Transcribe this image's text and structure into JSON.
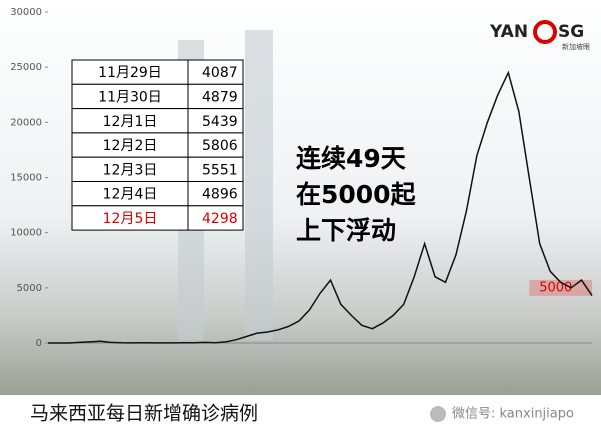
{
  "chart_data": {
    "type": "line",
    "series": [
      {
        "name": null,
        "color": "#111111",
        "values": [
          0,
          0,
          0,
          50,
          100,
          150,
          50,
          20,
          10,
          20,
          10,
          10,
          10,
          15,
          20,
          50,
          20,
          100,
          300,
          600,
          900,
          1000,
          1200,
          1500,
          2000,
          3000,
          4500,
          5700,
          3500,
          2500,
          1600,
          1300,
          1800,
          2500,
          3500,
          6000,
          9000,
          6000,
          5500,
          8000,
          12000,
          17000,
          20000,
          22500,
          24500,
          21000,
          15000,
          9000,
          6500,
          5500,
          5000,
          5700,
          4300
        ]
      }
    ],
    "ylim": [
      0,
      30000
    ],
    "yticks": [
      0,
      5000,
      10000,
      15000,
      20000,
      25000,
      30000
    ],
    "band": {
      "value": 5000,
      "label": "5000",
      "color": "#e05050"
    },
    "annotation": [
      "连续49天",
      "在5000起",
      "上下浮动"
    ],
    "caption": "马来西亚每日新增确诊病例"
  },
  "table": {
    "rows": [
      [
        "11月29日",
        4087
      ],
      [
        "11月30日",
        4879
      ],
      [
        "12月1日",
        5439
      ],
      [
        "12月2日",
        5806
      ],
      [
        "12月3日",
        5551
      ],
      [
        "12月4日",
        4896
      ],
      [
        "12月5日",
        4298
      ]
    ],
    "highlight_row": 6,
    "highlight_color": "#e00000"
  },
  "logo": {
    "left": "YAN",
    "right": "SG",
    "sub": "新加坡眼"
  },
  "wechat": "微信号: kanxinjiapo"
}
